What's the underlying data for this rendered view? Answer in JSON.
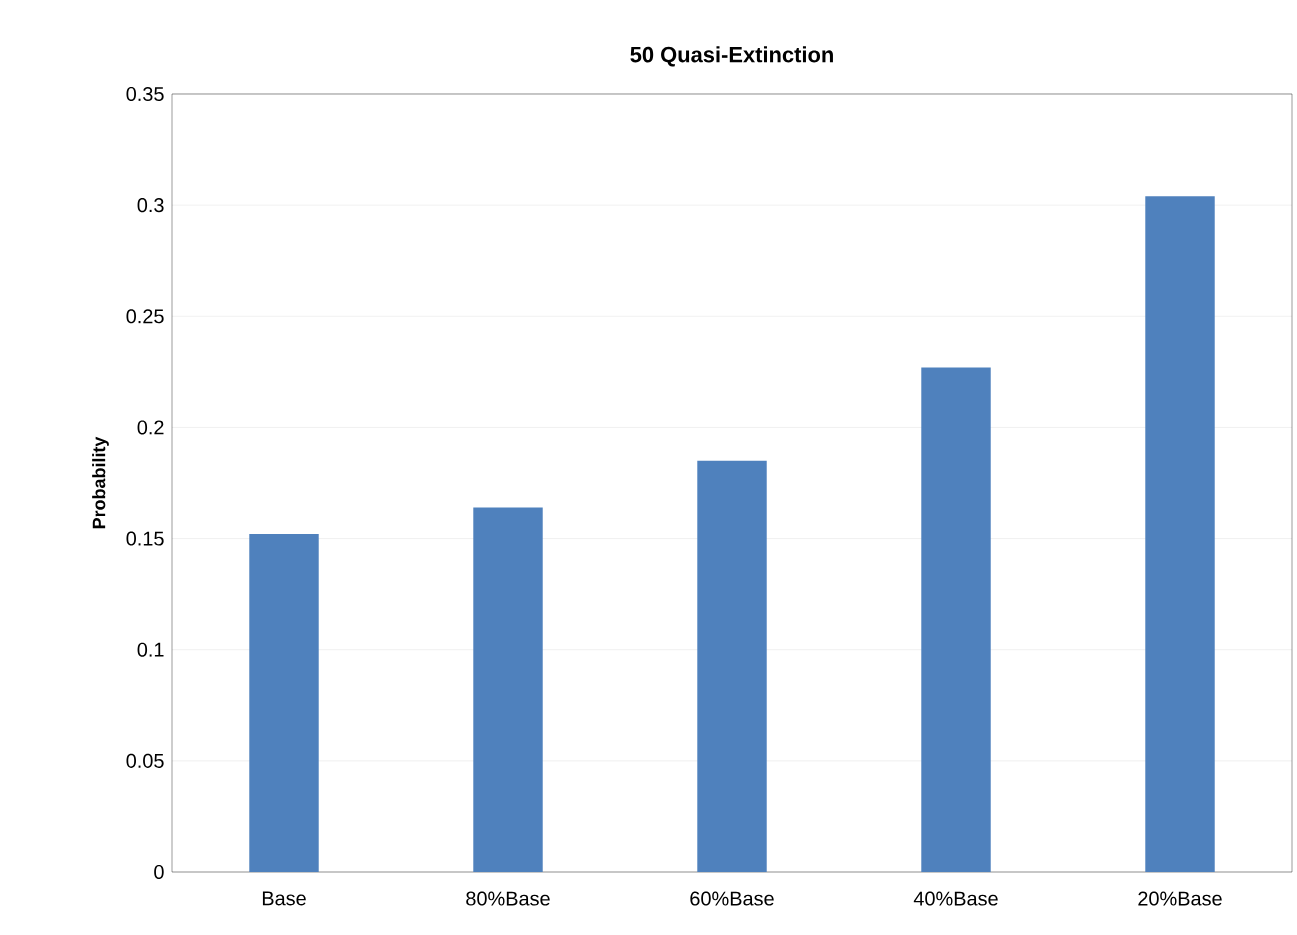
{
  "chart_data": {
    "type": "bar",
    "title": "50 Quasi-Extinction",
    "ylabel": "Probability",
    "categories": [
      "Base",
      "80%Base",
      "60%Base",
      "40%Base",
      "20%Base"
    ],
    "values": [
      0.152,
      0.164,
      0.185,
      0.227,
      0.304
    ],
    "color": "#4f81bd",
    "ylim": [
      0,
      0.35
    ],
    "yticks": [
      0,
      0.05,
      0.1,
      0.15,
      0.2,
      0.25,
      0.3,
      0.35
    ],
    "grid": "y"
  }
}
